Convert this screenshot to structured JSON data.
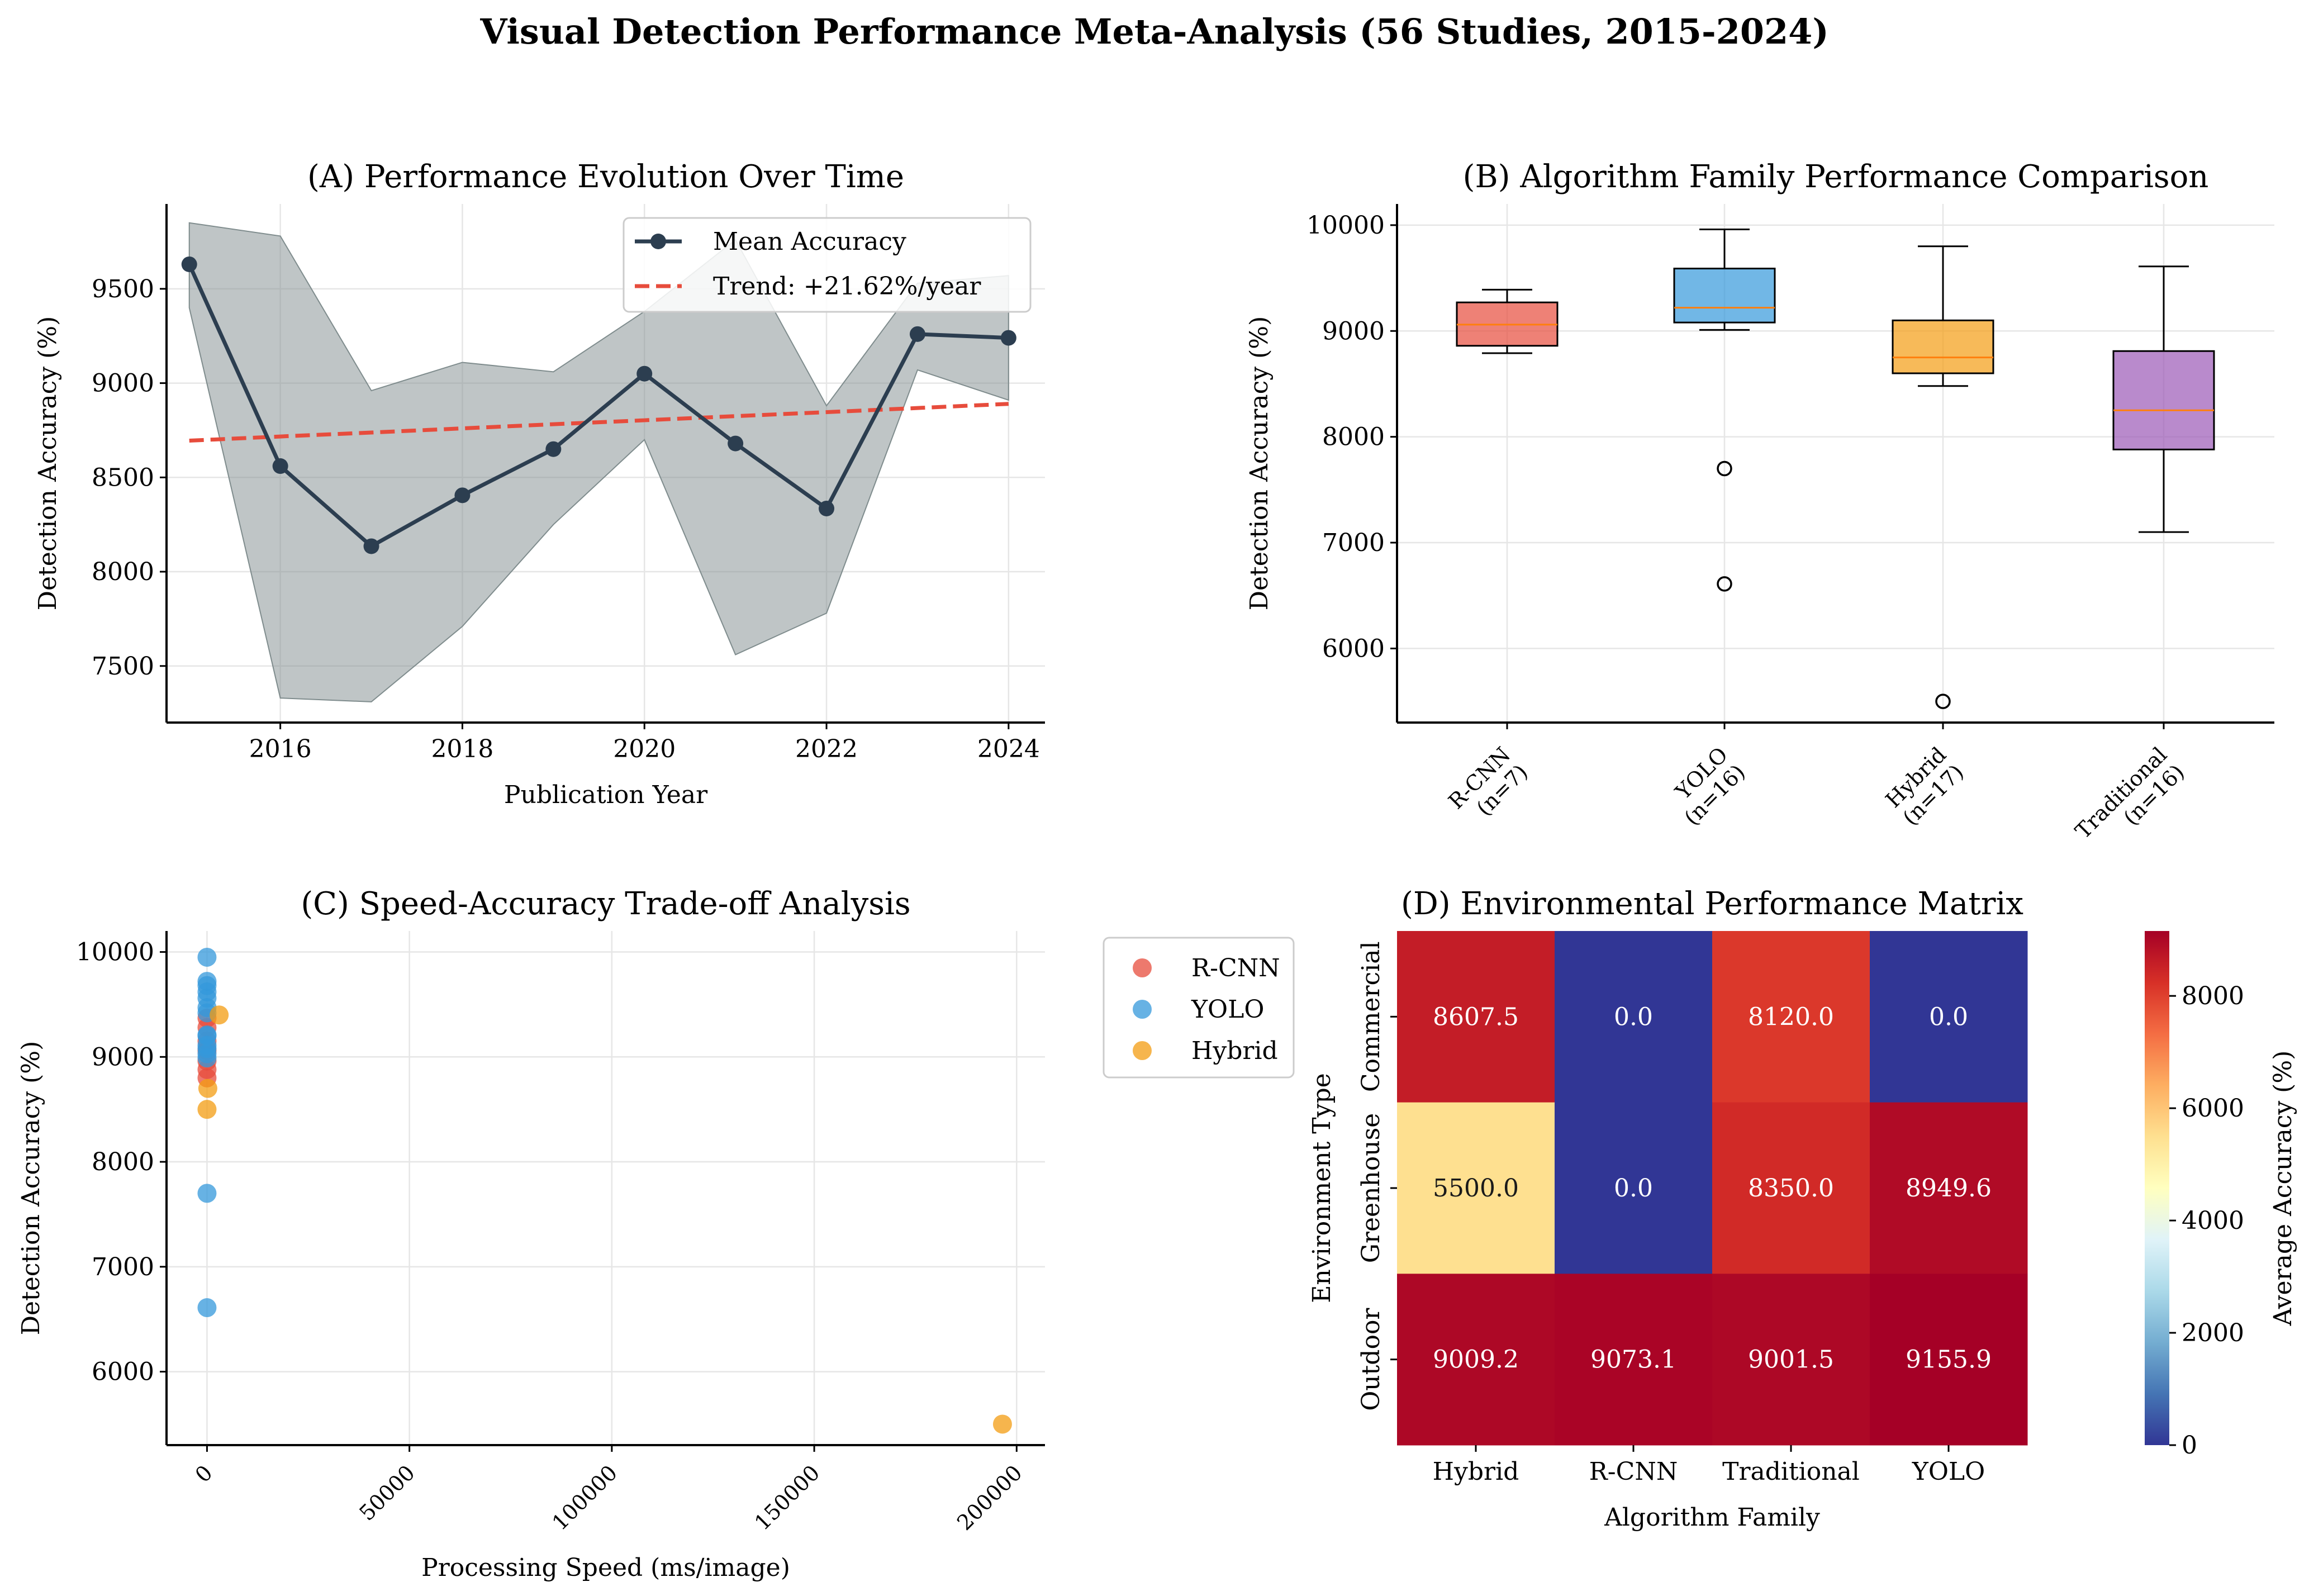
{
  "figure": {
    "title": "Visual Detection Performance Meta-Analysis (56 Studies, 2015-2024)"
  },
  "chart_data": [
    {
      "id": "A",
      "type": "line",
      "title": "(A) Performance Evolution Over Time",
      "xlabel": "Publication Year",
      "ylabel": "Detection Accuracy (%)",
      "xlim": [
        2014.75,
        2024.4
      ],
      "ylim": [
        7200,
        9950
      ],
      "xticks": [
        2016,
        2018,
        2020,
        2022,
        2024
      ],
      "yticks": [
        7500,
        8000,
        8500,
        9000,
        9500
      ],
      "grid": true,
      "legend_position": "top-right",
      "x": [
        2015,
        2016,
        2017,
        2018,
        2019,
        2020,
        2021,
        2022,
        2023,
        2024
      ],
      "series": [
        {
          "name": "Mean Accuracy",
          "color": "#2c3e50",
          "kind": "line-markers",
          "values": [
            9630,
            8560,
            8135,
            8405,
            8650,
            9050,
            8680,
            8335,
            9260,
            9240
          ]
        },
        {
          "name": "Trend: +21.62%/year",
          "color": "#e74c3c",
          "kind": "dashed-fit",
          "values": [
            8695,
            8717,
            8738,
            8760,
            8782,
            8803,
            8825,
            8846,
            8868,
            8890
          ]
        }
      ],
      "band": {
        "color": "#7f8c8d",
        "upper": [
          9850,
          9780,
          8960,
          9110,
          9060,
          9380,
          9760,
          8880,
          9530,
          9570
        ],
        "lower": [
          9400,
          7330,
          7310,
          7710,
          8250,
          8700,
          7560,
          7780,
          9070,
          8910
        ]
      }
    },
    {
      "id": "B",
      "type": "box",
      "title": "(B) Algorithm Family Performance Comparison",
      "ylabel": "Detection Accuracy (%)",
      "ylim": [
        5300,
        10200
      ],
      "yticks": [
        6000,
        7000,
        8000,
        9000,
        10000
      ],
      "grid": true,
      "categories": [
        "R-CNN\n(n=7)",
        "YOLO\n(n=16)",
        "Hybrid\n(n=17)",
        "Traditional\n(n=16)"
      ],
      "boxes": [
        {
          "name": "R-CNN",
          "color": "#e74c3c",
          "whisker_low": 8790,
          "q1": 8860,
          "median": 9060,
          "q3": 9270,
          "whisker_high": 9390,
          "outliers": []
        },
        {
          "name": "YOLO",
          "color": "#3498db",
          "whisker_low": 9010,
          "q1": 9080,
          "median": 9220,
          "q3": 9590,
          "whisker_high": 9960,
          "outliers": [
            7700,
            6610
          ]
        },
        {
          "name": "Hybrid",
          "color": "#f39c12",
          "whisker_low": 8480,
          "q1": 8600,
          "median": 8750,
          "q3": 9100,
          "whisker_high": 9800,
          "outliers": [
            5500
          ]
        },
        {
          "name": "Traditional",
          "color": "#9b59b6",
          "whisker_low": 7100,
          "q1": 7880,
          "median": 8250,
          "q3": 8810,
          "whisker_high": 9610,
          "outliers": []
        }
      ],
      "median_color": "#ff7f0e"
    },
    {
      "id": "C",
      "type": "scatter",
      "title": "(C) Speed-Accuracy Trade-off Analysis",
      "xlabel": "Processing Speed (ms/image)",
      "ylabel": "Detection Accuracy (%)",
      "xlim": [
        -10000,
        207000
      ],
      "ylim": [
        5300,
        10200
      ],
      "xticks": [
        0,
        50000,
        100000,
        150000,
        200000
      ],
      "yticks": [
        6000,
        7000,
        8000,
        9000,
        10000
      ],
      "grid": true,
      "legend_position": "right-outside",
      "series": [
        {
          "name": "R-CNN",
          "color": "#e74c3c",
          "points": [
            [
              0,
              9370
            ],
            [
              0,
              9280
            ],
            [
              0,
              9150
            ],
            [
              0,
              9060
            ],
            [
              0,
              8960
            ],
            [
              0,
              8880
            ],
            [
              0,
              8800
            ]
          ]
        },
        {
          "name": "YOLO",
          "color": "#3498db",
          "points": [
            [
              0,
              9950
            ],
            [
              0,
              9720
            ],
            [
              0,
              9680
            ],
            [
              0,
              9620
            ],
            [
              0,
              9560
            ],
            [
              0,
              9470
            ],
            [
              0,
              9420
            ],
            [
              0,
              9210
            ],
            [
              0,
              9200
            ],
            [
              0,
              9110
            ],
            [
              0,
              9080
            ],
            [
              0,
              9030
            ],
            [
              0,
              8990
            ],
            [
              0,
              7700
            ],
            [
              0,
              6610
            ]
          ]
        },
        {
          "name": "Hybrid",
          "color": "#f39c12",
          "points": [
            [
              3000,
              9400
            ],
            [
              200,
              8700
            ],
            [
              0,
              8500
            ],
            [
              196500,
              5500
            ]
          ]
        }
      ]
    },
    {
      "id": "D",
      "type": "heatmap",
      "title": "(D) Environmental Performance Matrix",
      "xlabel": "Algorithm Family",
      "ylabel": "Environment Type",
      "columns": [
        "Hybrid",
        "R-CNN",
        "Traditional",
        "YOLO"
      ],
      "rows": [
        "Commercial",
        "Greenhouse",
        "Outdoor"
      ],
      "values": [
        [
          8607.5,
          0.0,
          8120.0,
          0.0
        ],
        [
          5500.0,
          0.0,
          8350.0,
          8949.6
        ],
        [
          9009.2,
          9073.1,
          9001.5,
          9155.9
        ]
      ],
      "value_labels": [
        [
          "8607.5",
          "0.0",
          "8120.0",
          "0.0"
        ],
        [
          "5500.0",
          "0.0",
          "8350.0",
          "8949.6"
        ],
        [
          "9009.2",
          "9073.1",
          "9001.5",
          "9155.9"
        ]
      ],
      "colormap": "RdYlBu_r",
      "vmin": 0,
      "vmax": 9155.9,
      "colorbar": {
        "label": "Average Accuracy (%)",
        "ticks": [
          0,
          2000,
          4000,
          6000,
          8000
        ]
      }
    }
  ]
}
